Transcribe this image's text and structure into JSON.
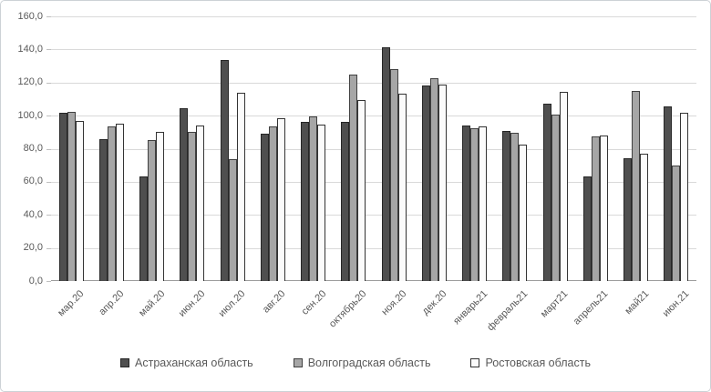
{
  "chart_data": {
    "type": "bar",
    "title": "",
    "xlabel": "",
    "ylabel": "",
    "ylim": [
      0,
      160
    ],
    "grid": true,
    "legend_position": "bottom",
    "y_ticks": [
      {
        "label": "160,0",
        "value": 160
      },
      {
        "label": "140,0",
        "value": 140
      },
      {
        "label": "120,0",
        "value": 120
      },
      {
        "label": "100,0",
        "value": 100
      },
      {
        "label": "80,0",
        "value": 80
      },
      {
        "label": "60,0",
        "value": 60
      },
      {
        "label": "40,0",
        "value": 40
      },
      {
        "label": "20,0",
        "value": 20
      },
      {
        "label": "0,0",
        "value": 0
      }
    ],
    "categories": [
      "мар.20",
      "апр.20",
      "май.20",
      "июн.20",
      "июл.20",
      "авг.20",
      "сен.20",
      "октябрь20",
      "ноя.20",
      "дек.20",
      "январь21",
      "февраль21",
      "март21",
      "апрель21",
      "май21",
      "июн.21"
    ],
    "series": [
      {
        "name": "Астраханская область",
        "fill": "#4f4f4f",
        "border": "#262626",
        "values": [
          102.0,
          86.0,
          63.5,
          104.5,
          133.5,
          89.0,
          96.5,
          96.0,
          141.5,
          118.0,
          94.0,
          91.0,
          107.0,
          63.0,
          74.0,
          105.5
        ]
      },
      {
        "name": "Волгоградская область",
        "fill": "#a6a6a6",
        "border": "#404040",
        "values": [
          102.5,
          93.5,
          85.5,
          90.0,
          73.5,
          93.5,
          99.5,
          125.0,
          128.0,
          122.5,
          92.5,
          89.5,
          100.5,
          87.5,
          115.0,
          70.0
        ]
      },
      {
        "name": "Ростовская область",
        "fill": "#fbfbfb",
        "border": "#333333",
        "values": [
          97.0,
          95.0,
          90.0,
          94.0,
          114.0,
          98.5,
          94.5,
          109.5,
          113.0,
          118.5,
          93.5,
          82.5,
          114.5,
          88.0,
          77.0,
          102.0
        ]
      }
    ],
    "colors": {
      "gridline": "#d9d9d9",
      "axis_line": "#9c9c9c",
      "tick_text": "#595959",
      "figure_border": "#cdd2d6",
      "background": "#ffffff"
    }
  }
}
